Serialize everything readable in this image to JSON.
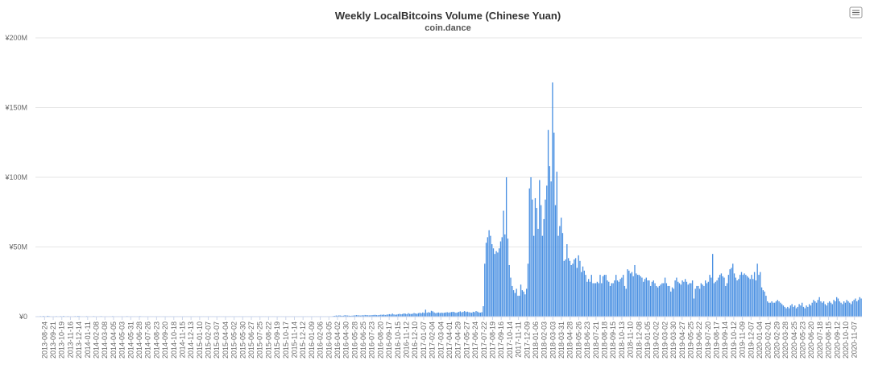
{
  "chart_data": {
    "type": "bar",
    "title": "Weekly LocalBitcoins Volume (Chinese Yuan)",
    "subtitle": "coin.dance",
    "xlabel": "",
    "ylabel": "",
    "ylim": [
      0,
      200
    ],
    "y_ticks": [
      {
        "value": 0,
        "label": "¥0"
      },
      {
        "value": 50,
        "label": "¥50M"
      },
      {
        "value": 100,
        "label": "¥100M"
      },
      {
        "value": 150,
        "label": "¥150M"
      },
      {
        "value": 200,
        "label": "¥200M"
      }
    ],
    "grid": true,
    "legend": "none",
    "bar_color": "#4a90e2",
    "x_tick_labels": [
      "2013-08-24",
      "2013-09-21",
      "2013-10-19",
      "2013-11-16",
      "2013-12-14",
      "2014-01-11",
      "2014-02-08",
      "2014-03-08",
      "2014-04-05",
      "2014-05-03",
      "2014-05-31",
      "2014-06-28",
      "2014-07-26",
      "2014-08-23",
      "2014-09-20",
      "2014-10-18",
      "2014-11-15",
      "2014-12-13",
      "2015-01-10",
      "2015-02-07",
      "2015-03-07",
      "2015-04-04",
      "2015-05-02",
      "2015-05-30",
      "2015-06-27",
      "2015-07-25",
      "2015-08-22",
      "2015-09-19",
      "2015-10-17",
      "2015-11-14",
      "2015-12-12",
      "2016-01-09",
      "2016-02-06",
      "2016-03-05",
      "2016-04-02",
      "2016-04-30",
      "2016-05-28",
      "2016-06-25",
      "2016-07-23",
      "2016-08-20",
      "2016-09-17",
      "2016-10-15",
      "2016-11-12",
      "2016-12-10",
      "2017-01-07",
      "2017-02-04",
      "2017-03-04",
      "2017-04-01",
      "2017-04-29",
      "2017-05-27",
      "2017-06-24",
      "2017-07-22",
      "2017-08-19",
      "2017-09-16",
      "2017-10-14",
      "2017-11-11",
      "2017-12-09",
      "2018-01-06",
      "2018-02-03",
      "2018-03-03",
      "2018-03-31",
      "2018-04-28",
      "2018-05-26",
      "2018-06-23",
      "2018-07-21",
      "2018-08-18",
      "2018-09-15",
      "2018-10-13",
      "2018-11-10",
      "2018-12-08",
      "2019-01-05",
      "2019-02-02",
      "2019-03-02",
      "2019-03-30",
      "2019-04-27",
      "2019-05-25",
      "2019-06-22",
      "2019-07-20",
      "2019-08-17",
      "2019-09-14",
      "2019-10-12",
      "2019-11-09",
      "2019-12-07",
      "2020-01-04",
      "2020-02-01",
      "2020-02-29",
      "2020-03-28",
      "2020-04-25",
      "2020-05-23",
      "2020-06-20",
      "2020-07-18",
      "2020-08-15",
      "2020-09-12",
      "2020-10-10",
      "2020-11-07"
    ],
    "values": [
      0.2,
      0.3,
      0.2,
      0.4,
      0.3,
      0.5,
      0.3,
      0.3,
      0.6,
      0.4,
      0.3,
      0.2,
      0.3,
      0.3,
      0.4,
      0.2,
      0.3,
      0.4,
      0.3,
      0.5,
      0.3,
      0.3,
      0.4,
      0.3,
      0.3,
      0.2,
      0.3,
      0.4,
      0.3,
      0.5,
      0.4,
      0.3,
      0.3,
      0.2,
      0.3,
      0.4,
      0.3,
      0.3,
      0.2,
      0.3,
      0.4,
      0.3,
      0.2,
      0.3,
      0.3,
      0.4,
      0.3,
      0.2,
      0.3,
      0.3,
      0.2,
      0.3,
      0.3,
      0.4,
      0.3,
      0.2,
      0.3,
      0.3,
      0.2,
      0.3,
      0.3,
      0.2,
      0.3,
      0.4,
      0.3,
      0.2,
      0.3,
      0.3,
      0.3,
      0.2,
      0.3,
      0.3,
      0.4,
      0.3,
      0.3,
      0.2,
      0.3,
      0.3,
      0.2,
      0.3,
      0.3,
      0.3,
      0.2,
      0.3,
      0.3,
      0.3,
      0.3,
      0.2,
      0.3,
      0.3,
      0.3,
      0.3,
      0.2,
      0.3,
      0.3,
      0.3,
      0.3,
      0.3,
      0.3,
      0.3,
      0.3,
      0.2,
      0.3,
      0.3,
      0.3,
      0.3,
      0.3,
      0.3,
      0.3,
      0.3,
      0.3,
      0.2,
      0.3,
      0.3,
      0.3,
      0.3,
      0.3,
      0.3,
      0.3,
      0.3,
      0.3,
      0.3,
      0.3,
      0.3,
      0.3,
      0.3,
      0.3,
      0.3,
      0.3,
      0.3,
      0.3,
      0.3,
      0.3,
      0.3,
      0.3,
      0.3,
      0.3,
      0.3,
      0.3,
      0.3,
      0.3,
      0.3,
      0.3,
      0.3,
      0.3,
      0.3,
      0.3,
      0.3,
      0.3,
      0.3,
      0.3,
      0.3,
      0.3,
      0.3,
      0.3,
      0.3,
      0.3,
      0.3,
      0.3,
      0.3,
      0.3,
      0.3,
      0.3,
      0.3,
      0.3,
      0.3,
      0.3,
      0.3,
      0.3,
      0.3,
      0.3,
      0.3,
      0.3,
      0.3,
      0.3,
      0.3,
      0.3,
      0.3,
      0.3,
      0.3,
      0.3,
      0.3,
      0.3,
      0.3,
      0.3,
      0.3,
      0.3,
      0.3,
      0.3,
      0.3,
      0.3,
      0.3,
      0.3,
      0.3,
      0.3,
      0.3,
      0.3,
      0.3,
      0.3,
      0.3,
      0.3,
      0.3,
      0.3,
      0.3,
      0.3,
      0.3,
      0.5,
      0.6,
      0.8,
      0.7,
      0.9,
      0.8,
      0.6,
      0.7,
      1.0,
      0.9,
      0.8,
      0.7,
      0.6,
      0.7,
      0.8,
      0.9,
      1.1,
      1.0,
      0.9,
      0.8,
      1.0,
      0.9,
      1.2,
      1.1,
      1.0,
      0.9,
      1.0,
      1.1,
      1.2,
      1.3,
      1.1,
      1.0,
      1.2,
      1.4,
      1.3,
      1.5,
      1.2,
      1.4,
      1.6,
      1.8,
      1.5,
      2.2,
      1.6,
      1.4,
      1.5,
      1.8,
      2.0,
      1.7,
      1.9,
      2.3,
      2.1,
      1.8,
      2.5,
      2.0,
      1.9,
      2.1,
      2.6,
      2.3,
      2.0,
      2.5,
      2.8,
      2.4,
      3.0,
      2.6,
      5.0,
      2.8,
      3.2,
      2.9,
      4.2,
      3.8,
      3.0,
      2.5,
      2.8,
      3.0,
      2.6,
      2.9,
      2.7,
      2.8,
      3.0,
      3.2,
      2.9,
      3.1,
      3.3,
      3.5,
      3.2,
      2.8,
      3.0,
      3.4,
      3.8,
      3.1,
      3.5,
      4.0,
      3.3,
      3.6,
      3.2,
      3.0,
      2.8,
      3.5,
      3.2,
      4.0,
      3.6,
      3.0,
      2.9,
      3.2,
      7.5,
      38,
      53,
      57,
      62,
      58,
      52,
      49,
      45,
      47,
      46,
      49,
      54,
      57,
      76,
      59,
      100,
      56,
      37,
      28,
      22,
      19,
      17,
      20,
      15,
      15,
      23,
      19,
      18,
      16,
      20,
      38,
      92,
      100,
      84,
      58,
      85,
      78,
      63,
      98,
      80,
      58,
      70,
      84,
      94,
      134,
      108,
      97,
      168,
      132,
      80,
      104,
      58,
      65,
      71,
      60,
      40,
      41,
      52,
      42,
      40,
      37,
      38,
      41,
      42,
      35,
      44,
      40,
      32,
      36,
      33,
      30,
      25,
      27,
      25,
      30,
      24,
      24,
      24,
      25,
      24,
      30,
      24,
      29,
      30,
      30,
      26,
      25,
      22,
      24,
      24,
      26,
      30,
      26,
      25,
      27,
      28,
      30,
      22,
      20,
      34,
      33,
      31,
      32,
      29,
      37,
      31,
      30,
      30,
      29,
      28,
      25,
      27,
      28,
      26,
      26,
      22,
      25,
      26,
      24,
      22,
      21,
      22,
      23,
      24,
      24,
      28,
      24,
      22,
      22,
      18,
      21,
      20,
      26,
      28,
      25,
      24,
      23,
      26,
      25,
      27,
      25,
      23,
      24,
      24,
      26,
      13,
      20,
      22,
      22,
      20,
      24,
      23,
      22,
      26,
      24,
      25,
      30,
      28,
      45,
      24,
      25,
      26,
      28,
      30,
      31,
      29,
      28,
      22,
      24,
      30,
      34,
      35,
      38,
      31,
      28,
      26,
      27,
      30,
      32,
      30,
      31,
      30,
      29,
      28,
      27,
      30,
      27,
      32,
      26,
      38,
      30,
      32,
      21,
      19,
      18,
      15,
      11,
      10,
      10,
      11,
      10,
      10,
      11,
      12,
      11,
      10,
      9,
      8,
      7,
      6,
      7,
      6,
      8,
      9,
      7,
      8,
      6,
      7,
      9,
      8,
      10,
      7,
      6,
      8,
      7,
      9,
      8,
      10,
      12,
      11,
      10,
      12,
      14,
      11,
      10,
      11,
      9,
      8,
      10,
      11,
      10,
      9,
      12,
      11,
      14,
      13,
      11,
      10,
      9,
      11,
      10,
      12,
      11,
      10,
      9,
      11,
      12,
      13,
      11,
      12,
      14,
      13
    ]
  },
  "menu_icon": "hamburger-menu-icon",
  "colors": {
    "bar": "#4a90e2",
    "grid": "#e6e6e6",
    "axis": "#ccd6eb",
    "text": "#666666"
  }
}
